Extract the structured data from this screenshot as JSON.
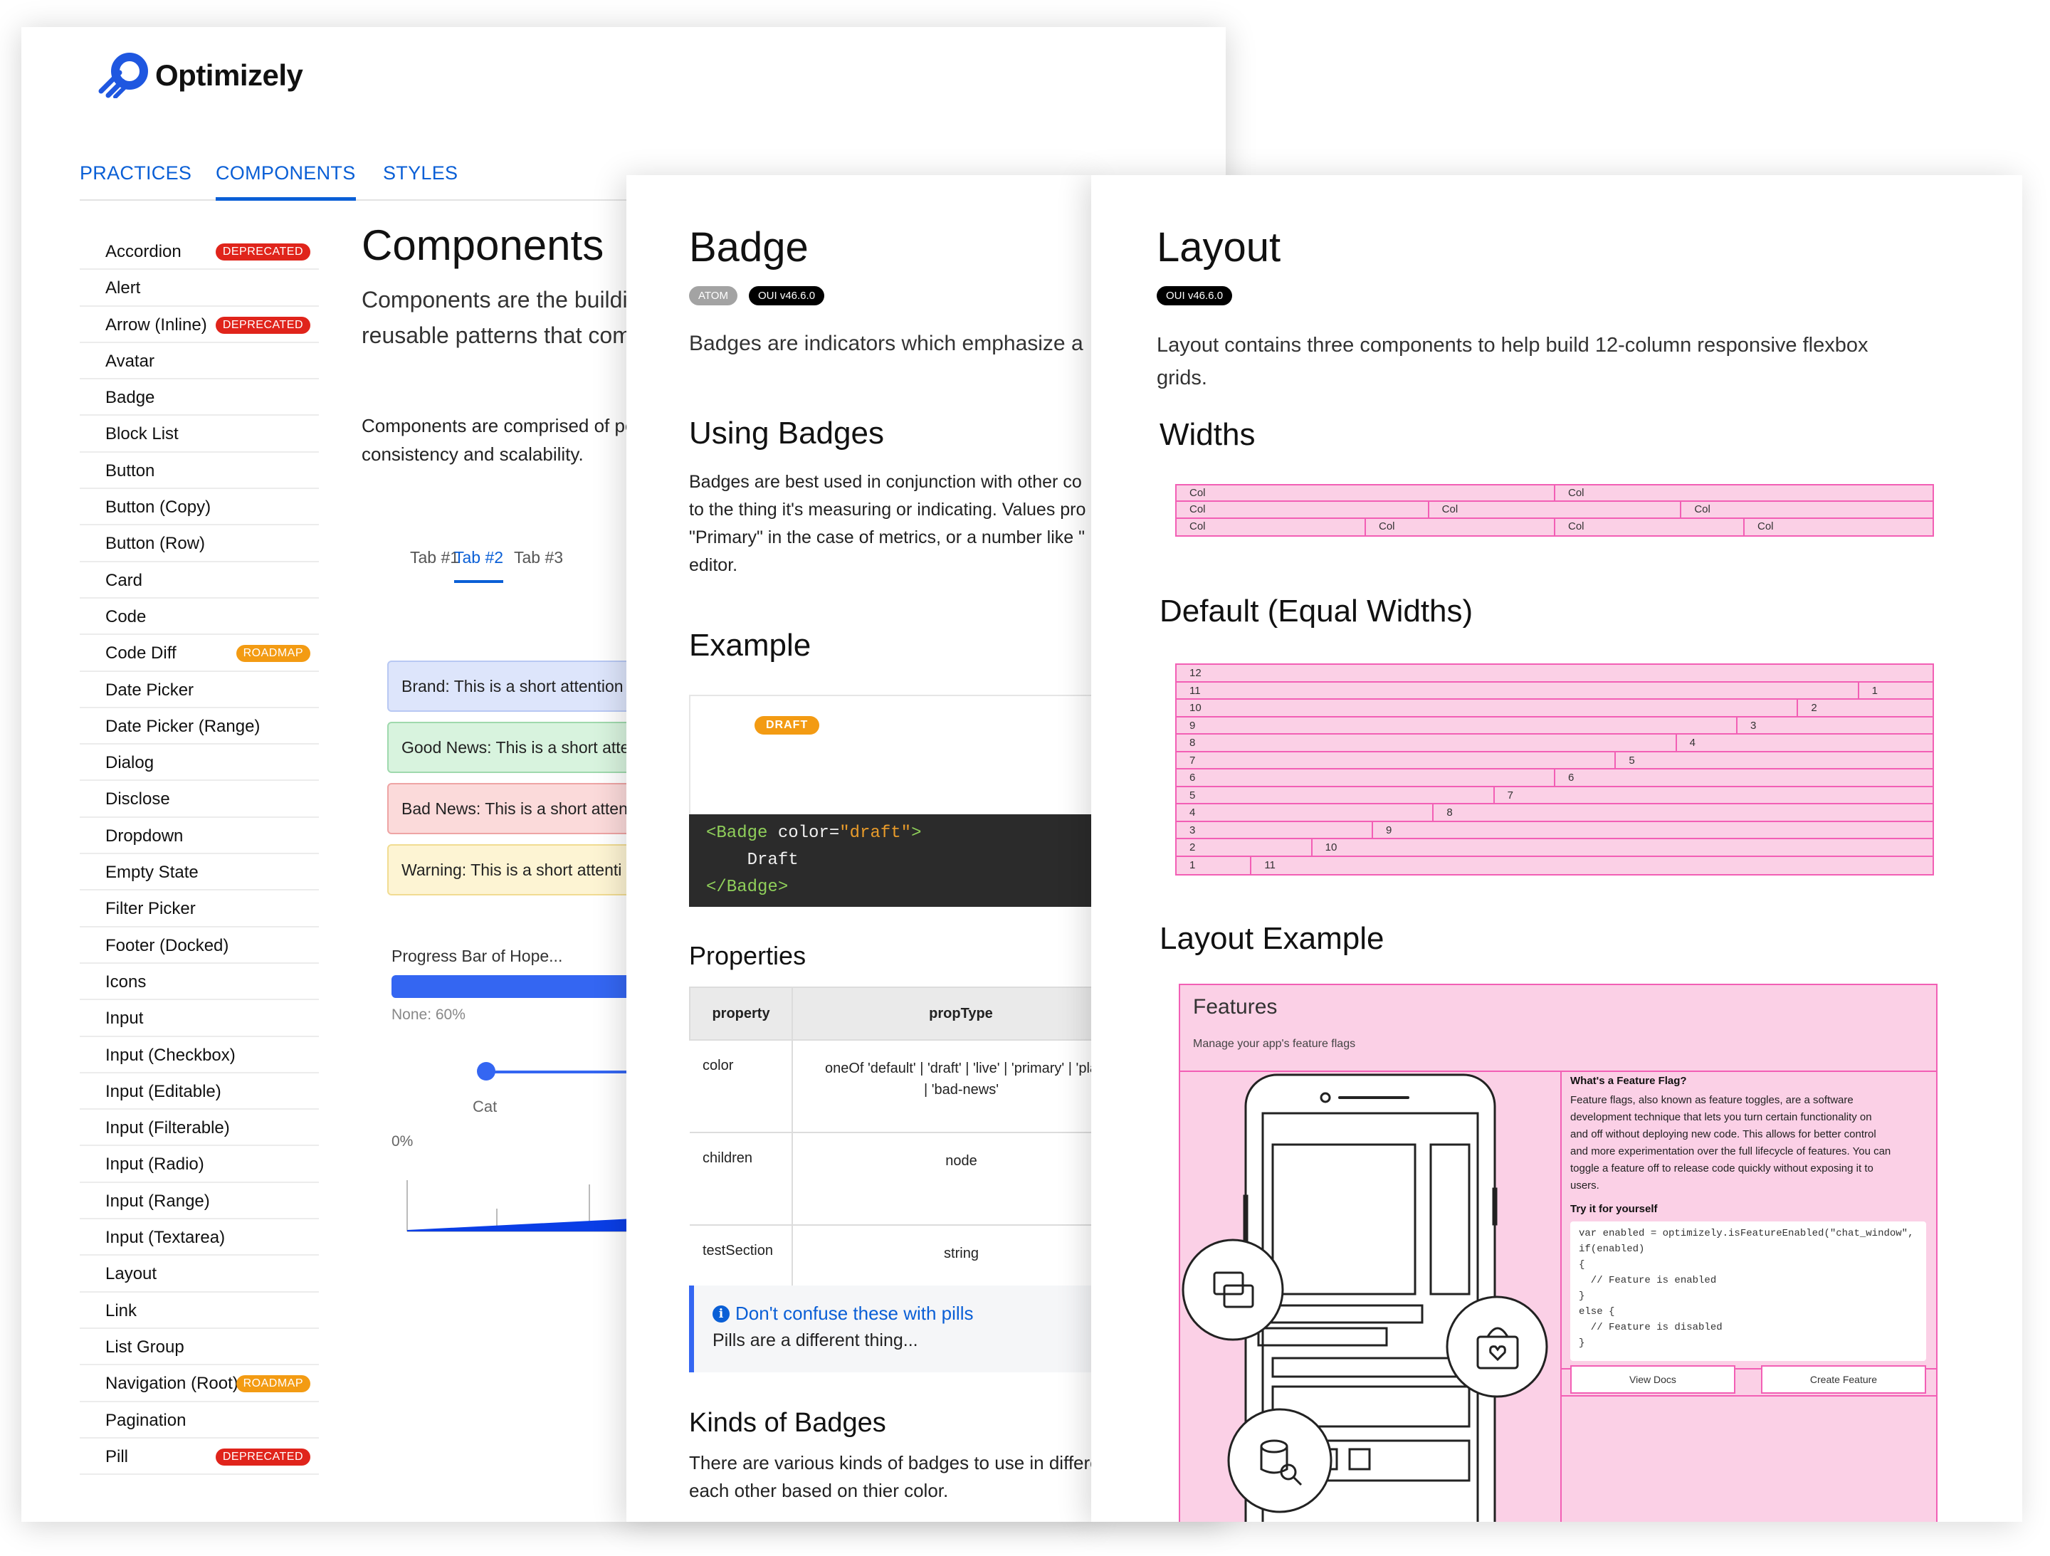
{
  "brand": {
    "name": "Optimizely",
    "logo_icon": "optimizely-logo-icon",
    "color": "#0a5fd6"
  },
  "nav": {
    "tabs": [
      {
        "label": "PRACTICES"
      },
      {
        "label": "COMPONENTS",
        "active": true
      },
      {
        "label": "STYLES"
      }
    ]
  },
  "sidebar": {
    "items": [
      {
        "label": "Accordion",
        "badge": "DEPRECATED",
        "badge_type": "deprecated"
      },
      {
        "label": "Alert"
      },
      {
        "label": "Arrow (Inline)",
        "badge": "DEPRECATED",
        "badge_type": "deprecated"
      },
      {
        "label": "Avatar"
      },
      {
        "label": "Badge"
      },
      {
        "label": "Block List"
      },
      {
        "label": "Button"
      },
      {
        "label": "Button (Copy)"
      },
      {
        "label": "Button (Row)"
      },
      {
        "label": "Card"
      },
      {
        "label": "Code"
      },
      {
        "label": "Code Diff",
        "badge": "ROADMAP",
        "badge_type": "roadmap"
      },
      {
        "label": "Date Picker"
      },
      {
        "label": "Date Picker (Range)"
      },
      {
        "label": "Dialog"
      },
      {
        "label": "Disclose"
      },
      {
        "label": "Dropdown"
      },
      {
        "label": "Empty State"
      },
      {
        "label": "Filter Picker"
      },
      {
        "label": "Footer (Docked)"
      },
      {
        "label": "Icons"
      },
      {
        "label": "Input"
      },
      {
        "label": "Input (Checkbox)"
      },
      {
        "label": "Input (Editable)"
      },
      {
        "label": "Input (Filterable)"
      },
      {
        "label": "Input (Radio)"
      },
      {
        "label": "Input (Range)"
      },
      {
        "label": "Input (Textarea)"
      },
      {
        "label": "Layout"
      },
      {
        "label": "Link"
      },
      {
        "label": "List Group"
      },
      {
        "label": "Navigation (Root)",
        "badge": "ROADMAP",
        "badge_type": "roadmap"
      },
      {
        "label": "Pagination"
      },
      {
        "label": "Pill",
        "badge": "DEPRECATED",
        "badge_type": "deprecated"
      }
    ]
  },
  "components_page": {
    "title": "Components",
    "subtitle": "Components are the buildi\nreusable patterns that com",
    "subtitle2": "Components are comprised of pe\nconsistency and scalability.",
    "tabs": [
      "Tab #1",
      "Tab #2",
      "Tab #3"
    ],
    "active_tab": 1,
    "alerts": [
      {
        "text": "Brand: This is a short attention",
        "type": "brand"
      },
      {
        "text": "Good News: This is a short atte",
        "type": "good"
      },
      {
        "text": "Bad News: This is a short atten",
        "type": "bad"
      },
      {
        "text": "Warning: This is a short attenti",
        "type": "warning"
      }
    ],
    "progress_label": "Progress Bar of Hope...",
    "progress_note": "None: 60%",
    "slider_label": "Cat",
    "percent_label": "0%"
  },
  "badge_page": {
    "title": "Badge",
    "pills": [
      "ATOM",
      "OUI v46.6.0"
    ],
    "description": "Badges are indicators which emphasize a",
    "using_title": "Using Badges",
    "using_body": "Badges are best used in conjunction with other co\nto the thing it's measuring or indicating. Values pro\n\"Primary\" in the case of metrics, or a number like \"\neditor.",
    "example_title": "Example",
    "example_badge": "DRAFT",
    "code": {
      "line1_tag": "<Badge",
      "line1_attr": " color=",
      "line1_val": "\"draft\"",
      "line1_close": ">",
      "line2": "    Draft",
      "line3": "</Badge>"
    },
    "properties_title": "Properties",
    "properties_headers": [
      "property",
      "propType"
    ],
    "properties": [
      {
        "property": "color",
        "propType": "oneOf 'default' | 'draft' | 'live' | 'primary' | 'pla\n| 'bad-news'"
      },
      {
        "property": "children",
        "propType": "node"
      },
      {
        "property": "testSection",
        "propType": "string"
      }
    ],
    "note_title": "Don't confuse these with pills",
    "note_body": "Pills are a different thing...",
    "kinds_title": "Kinds of Badges",
    "kinds_body": "There are various kinds of badges to use in differe\neach other based on thier color."
  },
  "layout_page": {
    "title": "Layout",
    "pill": "OUI v46.6.0",
    "description": "Layout contains three components to help build 12-column responsive flexbox\ngrids.",
    "widths_title": "Widths",
    "widths_rows": [
      [
        "Col",
        "Col"
      ],
      [
        "Col",
        "Col",
        "Col"
      ],
      [
        "Col",
        "Col",
        "Col",
        "Col"
      ]
    ],
    "equal_title": "Default (Equal Widths)",
    "equal_rows": [
      [
        "12"
      ],
      [
        "11",
        "1"
      ],
      [
        "10",
        "2"
      ],
      [
        "9",
        "3"
      ],
      [
        "8",
        "4"
      ],
      [
        "7",
        "5"
      ],
      [
        "6",
        "6"
      ],
      [
        "5",
        "7"
      ],
      [
        "4",
        "8"
      ],
      [
        "3",
        "9"
      ],
      [
        "2",
        "10"
      ],
      [
        "1",
        "11"
      ]
    ],
    "example_title": "Layout Example",
    "feature": {
      "title": "Features",
      "subtitle": "Manage your app's feature flags",
      "info_title": "What's a Feature Flag?",
      "info_body": "Feature flags, also known as feature toggles, are a software\ndevelopment technique that lets you turn certain functionality on\nand off without deploying new code. This allows for better control\nand more experimentation over the full lifecycle of features. You can\ntoggle a feature off to release code quickly without exposing it to\nusers.",
      "try_title": "Try it for yourself",
      "code": "var enabled = optimizely.isFeatureEnabled(\"chat_window\",\nif(enabled)\n{\n  // Feature is enabled\n}\nelse {\n  // Feature is disabled\n}",
      "view_docs": "View Docs",
      "create_feature": "Create Feature"
    }
  },
  "colors": {
    "accent": "#0a5fd6",
    "deprecated": "#e0241b",
    "roadmap": "#f39b13",
    "grid_pink": "#fbd0e6",
    "grid_border": "#f25fb5"
  }
}
